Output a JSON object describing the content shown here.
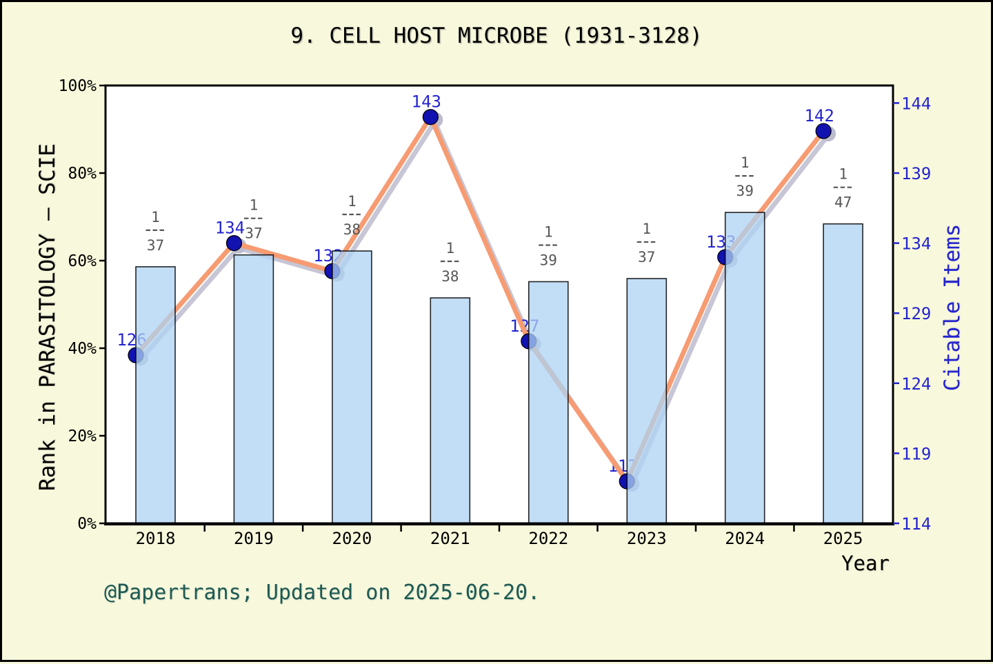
{
  "title": "9. CELL HOST MICROBE (1931-3128)",
  "caption": "@Papertrans; Updated on 2025-06-20.",
  "axes": {
    "left_label": "Rank in PARASITOLOGY — SCIE",
    "right_label": "Citable Items",
    "x_label": "Year"
  },
  "colors": {
    "background": "#f8f8dc",
    "plot_bg": "#ffffff",
    "frame": "#000000",
    "bar_fill": "#aed3f3",
    "bar_fill_opacity": 0.75,
    "bar_border": "rgba(0,0,0,0.85)",
    "line": "#f79b72",
    "line_shadow": "#c6c6d6",
    "marker": "#1212b0",
    "marker_shadow": "#bcbcce",
    "value_label": "#2424d0",
    "fraction_label": "#555555",
    "right_axis_color": "#2424d0",
    "left_axis_color": "#000000",
    "caption_color": "#1c5a53"
  },
  "chart_data": {
    "type": "bar+line combo",
    "title": "9. CELL HOST MICROBE (1931-3128)",
    "xlabel": "Year",
    "ylabel_left": "Rank in PARASITOLOGY — SCIE",
    "ylabel_right": "Citable Items",
    "grid": false,
    "legend": false,
    "categories": [
      "2018",
      "2019",
      "2020",
      "2021",
      "2022",
      "2023",
      "2024",
      "2025"
    ],
    "series": [
      {
        "name": "Rank in PARASITOLOGY — SCIE",
        "type": "bar",
        "axis": "left",
        "unit": "percent",
        "values": [
          58.6,
          61.3,
          62.2,
          51.5,
          55.2,
          55.9,
          71.0,
          68.4
        ],
        "rank_labels": [
          "1/37",
          "1/37",
          "1/38",
          "1/38",
          "1/39",
          "1/37",
          "1/39",
          "1/47"
        ]
      },
      {
        "name": "Citable Items",
        "type": "line",
        "axis": "right",
        "values": [
          126,
          134,
          132,
          143,
          127,
          117,
          133,
          142
        ]
      }
    ],
    "left_axis": {
      "min": 0,
      "max": 100,
      "tick_step": 20,
      "unit": "%"
    },
    "right_axis": {
      "min": 114,
      "max": 145.25,
      "ticks": [
        114,
        119,
        124,
        129,
        134,
        139,
        144
      ]
    }
  }
}
